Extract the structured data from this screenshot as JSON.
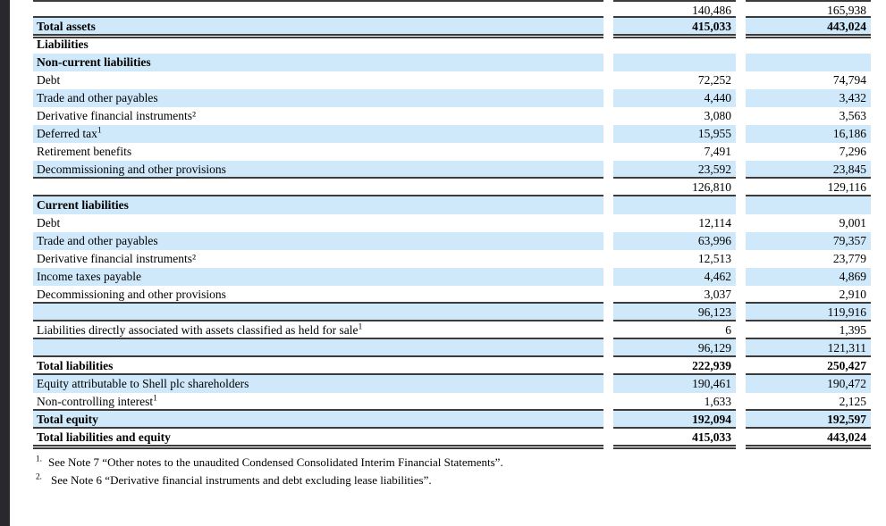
{
  "colors": {
    "row_highlight": "#cfe9fa",
    "rule": "#3c3c3c",
    "sidebar": "#29292d",
    "text": "#000000"
  },
  "table": {
    "rows": [
      {
        "label": "",
        "sup": "",
        "v1": "140,486",
        "v2": "165,938",
        "shaded": false,
        "bold": false,
        "bt": true,
        "bb": "single"
      },
      {
        "label": "Total assets",
        "sup": "",
        "v1": "415,033",
        "v2": "443,024",
        "shaded": true,
        "bold": true,
        "bt": false,
        "bb": "double"
      },
      {
        "label": "Liabilities",
        "sup": "",
        "v1": "",
        "v2": "",
        "shaded": false,
        "bold": true,
        "bt": false,
        "bb": "none"
      },
      {
        "label": "Non-current liabilities",
        "sup": "",
        "v1": "",
        "v2": "",
        "shaded": true,
        "bold": true,
        "bt": false,
        "bb": "none"
      },
      {
        "label": "Debt",
        "sup": "",
        "v1": "72,252",
        "v2": "74,794",
        "shaded": false,
        "bold": false,
        "bt": false,
        "bb": "none"
      },
      {
        "label": "Trade and other payables",
        "sup": "",
        "v1": "4,440",
        "v2": "3,432",
        "shaded": true,
        "bold": false,
        "bt": false,
        "bb": "none"
      },
      {
        "label": "Derivative financial instruments²",
        "sup": "",
        "v1": "3,080",
        "v2": "3,563",
        "shaded": false,
        "bold": false,
        "bt": false,
        "bb": "none"
      },
      {
        "label": "Deferred tax",
        "sup": "1",
        "v1": "15,955",
        "v2": "16,186",
        "shaded": true,
        "bold": false,
        "bt": false,
        "bb": "none"
      },
      {
        "label": "Retirement benefits",
        "sup": "",
        "v1": "7,491",
        "v2": "7,296",
        "shaded": false,
        "bold": false,
        "bt": false,
        "bb": "none"
      },
      {
        "label": "Decommissioning and other provisions",
        "sup": "",
        "v1": "23,592",
        "v2": "23,845",
        "shaded": true,
        "bold": false,
        "bt": false,
        "bb": "single"
      },
      {
        "label": "",
        "sup": "",
        "v1": "126,810",
        "v2": "129,116",
        "shaded": false,
        "bold": false,
        "bt": false,
        "bb": "single"
      },
      {
        "label": "Current liabilities",
        "sup": "",
        "v1": "",
        "v2": "",
        "shaded": true,
        "bold": true,
        "bt": false,
        "bb": "none"
      },
      {
        "label": "Debt",
        "sup": "",
        "v1": "12,114",
        "v2": "9,001",
        "shaded": false,
        "bold": false,
        "bt": false,
        "bb": "none"
      },
      {
        "label": "Trade and other payables",
        "sup": "",
        "v1": "63,996",
        "v2": "79,357",
        "shaded": true,
        "bold": false,
        "bt": false,
        "bb": "none"
      },
      {
        "label": "Derivative financial instruments²",
        "sup": "",
        "v1": "12,513",
        "v2": "23,779",
        "shaded": false,
        "bold": false,
        "bt": false,
        "bb": "none"
      },
      {
        "label": "Income taxes payable",
        "sup": "",
        "v1": "4,462",
        "v2": "4,869",
        "shaded": true,
        "bold": false,
        "bt": false,
        "bb": "none"
      },
      {
        "label": "Decommissioning and other provisions",
        "sup": "",
        "v1": "3,037",
        "v2": "2,910",
        "shaded": false,
        "bold": false,
        "bt": false,
        "bb": "single"
      },
      {
        "label": "",
        "sup": "",
        "v1": "96,123",
        "v2": "119,916",
        "shaded": true,
        "bold": false,
        "bt": false,
        "bb": "single"
      },
      {
        "label": "Liabilities directly associated with assets classified as held for sale",
        "sup": "1",
        "v1": "6",
        "v2": "1,395",
        "shaded": false,
        "bold": false,
        "bt": false,
        "bb": "single"
      },
      {
        "label": "",
        "sup": "",
        "v1": "96,129",
        "v2": "121,311",
        "shaded": true,
        "bold": false,
        "bt": false,
        "bb": "single"
      },
      {
        "label": "Total liabilities",
        "sup": "",
        "v1": "222,939",
        "v2": "250,427",
        "shaded": false,
        "bold": true,
        "bt": false,
        "bb": "single"
      },
      {
        "label": "Equity attributable to Shell plc shareholders",
        "sup": "",
        "v1": "190,461",
        "v2": "190,472",
        "shaded": true,
        "bold": false,
        "bt": false,
        "bb": "none"
      },
      {
        "label": "Non-controlling interest",
        "sup": "1",
        "v1": "1,633",
        "v2": "2,125",
        "shaded": false,
        "bold": false,
        "bt": false,
        "bb": "single"
      },
      {
        "label": "Total equity",
        "sup": "",
        "v1": "192,094",
        "v2": "192,597",
        "shaded": true,
        "bold": true,
        "bt": false,
        "bb": "single"
      },
      {
        "label": "Total liabilities and equity",
        "sup": "",
        "v1": "415,033",
        "v2": "443,024",
        "shaded": false,
        "bold": true,
        "bt": false,
        "bb": "double"
      }
    ]
  },
  "footnotes": [
    {
      "marker": "1.",
      "text": "See Note 7 “Other notes to the unaudited Condensed Consolidated Interim Financial Statements”."
    },
    {
      "marker": "2.",
      "text": "See Note 6 “Derivative financial instruments and debt excluding lease liabilities”."
    }
  ]
}
